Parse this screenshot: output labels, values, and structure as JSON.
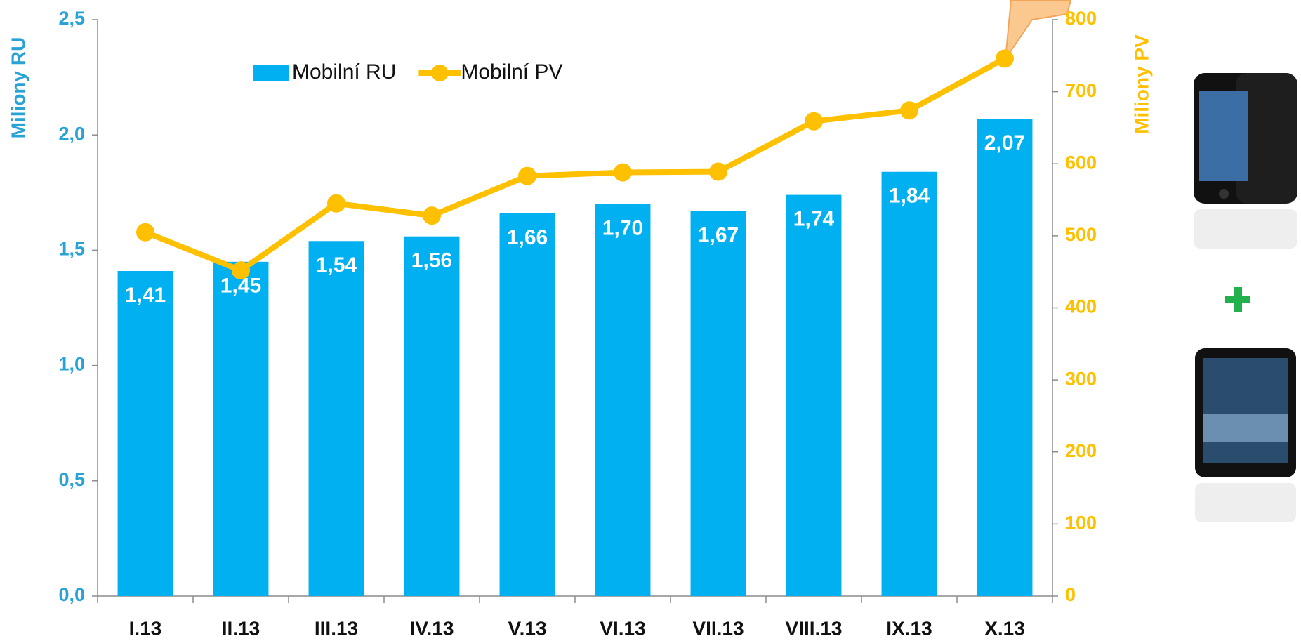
{
  "chart_data": {
    "type": "bar",
    "categories": [
      "I.13",
      "II.13",
      "III.13",
      "IV.13",
      "V.13",
      "VI.13",
      "VII.13",
      "VIII.13",
      "IX.13",
      "X.13"
    ],
    "series": [
      {
        "name": "Mobilní RU",
        "type": "bar",
        "color": "#00b0f0",
        "values": [
          1.41,
          1.45,
          1.54,
          1.56,
          1.66,
          1.7,
          1.67,
          1.74,
          1.84,
          2.07
        ],
        "value_labels": [
          "1,41",
          "1,45",
          "1,54",
          "1,56",
          "1,66",
          "1,70",
          "1,67",
          "1,74",
          "1,84",
          "2,07"
        ]
      },
      {
        "name": "Mobilní PV",
        "type": "line",
        "axis": "y2",
        "color": "#ffc000",
        "values": [
          505,
          452,
          545,
          528,
          583,
          588,
          589,
          659,
          674,
          746
        ]
      }
    ],
    "ylabel": "Miliony RU",
    "y2label": "Miliony PV",
    "ylim": [
      0,
      2.5
    ],
    "yticks": [
      {
        "value": 0,
        "label": "0,0"
      },
      {
        "value": 0.5,
        "label": "0,5"
      },
      {
        "value": 1,
        "label": "1,0"
      },
      {
        "value": 1.5,
        "label": "1,5"
      },
      {
        "value": 2,
        "label": "2,0"
      },
      {
        "value": 2.5,
        "label": "2,5"
      }
    ],
    "y2lim": [
      0,
      800
    ],
    "y2ticks": [
      0,
      100,
      200,
      300,
      400,
      500,
      600,
      700,
      800
    ],
    "grid": false,
    "legend": "top-left"
  }
}
